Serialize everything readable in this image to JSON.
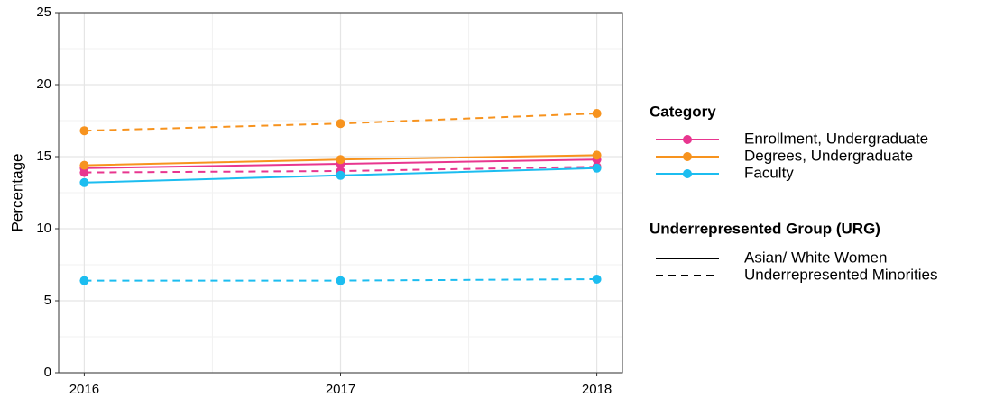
{
  "chart_data": {
    "type": "line",
    "y_label": "Percentage",
    "xlim": [
      2015.9,
      2018.1
    ],
    "xticks": [
      2016,
      2017,
      2018
    ],
    "ylim": [
      0,
      25
    ],
    "yticks": [
      0,
      5,
      10,
      15,
      20,
      25
    ],
    "grid": true,
    "x": [
      2016,
      2017,
      2018
    ],
    "color_legend": {
      "title": "Category",
      "items": [
        {
          "name": "Enrollment, Undergraduate",
          "color": "#e8368f"
        },
        {
          "name": "Degrees, Undergraduate",
          "color": "#f7931e"
        },
        {
          "name": "Faculty",
          "color": "#1cbdf0"
        }
      ]
    },
    "linetype_legend": {
      "title": "Underrepresented Group (URG)",
      "items": [
        {
          "name": "Asian/ White Women",
          "dash": "solid"
        },
        {
          "name": "Underrepresented Minorities",
          "dash": "dashed"
        }
      ]
    },
    "series": [
      {
        "category": 0,
        "group": 0,
        "values": [
          14.2,
          14.5,
          14.8
        ]
      },
      {
        "category": 0,
        "group": 1,
        "values": [
          13.9,
          14.0,
          14.3
        ]
      },
      {
        "category": 1,
        "group": 0,
        "values": [
          14.4,
          14.8,
          15.1
        ]
      },
      {
        "category": 1,
        "group": 1,
        "values": [
          16.8,
          17.3,
          18.0
        ]
      },
      {
        "category": 2,
        "group": 0,
        "values": [
          13.2,
          13.7,
          14.2
        ]
      },
      {
        "category": 2,
        "group": 1,
        "values": [
          6.4,
          6.4,
          6.5
        ]
      }
    ]
  }
}
